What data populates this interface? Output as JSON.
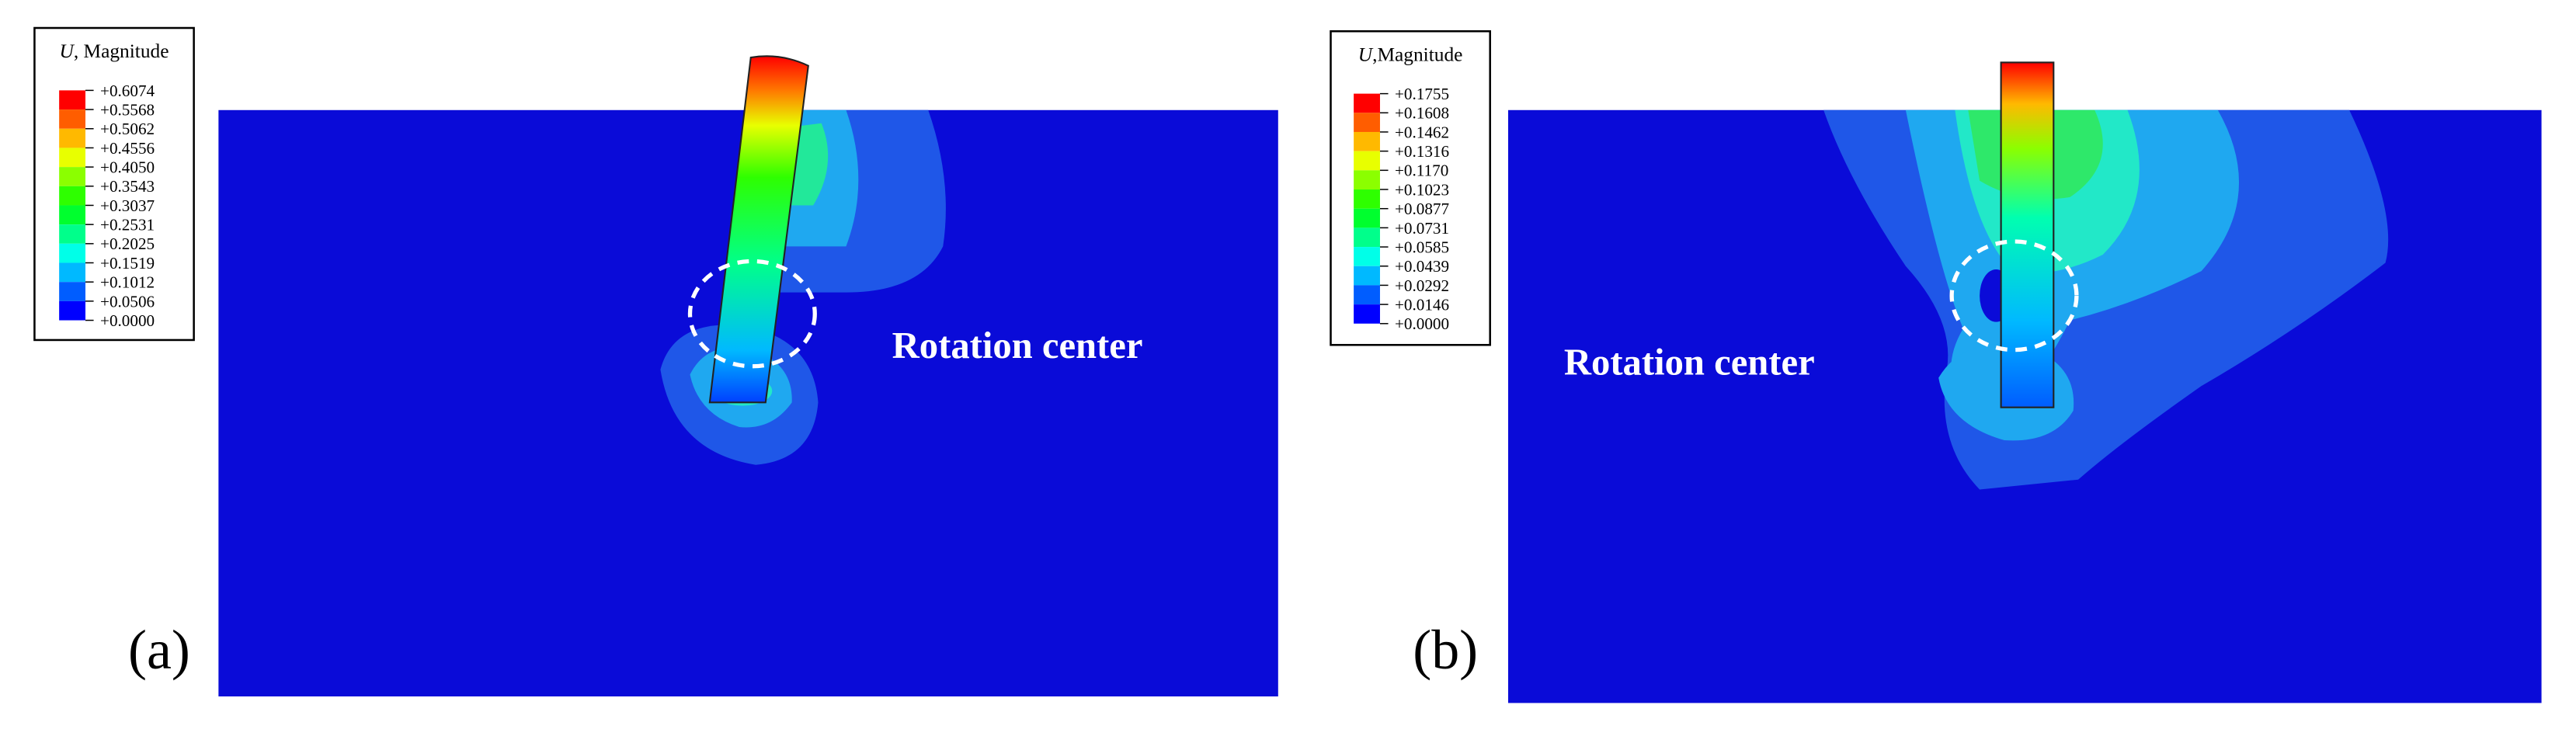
{
  "panels": [
    {
      "label": "(a)",
      "annotation": "Rotation center",
      "legend": {
        "symbol": "U",
        "title": ", Magnitude",
        "levels": [
          "+0.6074",
          "+0.5568",
          "+0.5062",
          "+0.4556",
          "+0.4050",
          "+0.3543",
          "+0.3037",
          "+0.2531",
          "+0.2025",
          "+0.1519",
          "+0.1012",
          "+0.0506",
          "+0.0000"
        ],
        "colors": [
          "#ff0000",
          "#ff5d00",
          "#ffb900",
          "#e8ff00",
          "#8bff00",
          "#2eff00",
          "#00ff2e",
          "#00ff8b",
          "#00ffe8",
          "#00b9ff",
          "#005dff",
          "#0000ff"
        ]
      }
    },
    {
      "label": "(b)",
      "annotation": "Rotation center",
      "legend": {
        "symbol": "U",
        "title": ",Magnitude",
        "levels": [
          "+0.1755",
          "+0.1608",
          "+0.1462",
          "+0.1316",
          "+0.1170",
          "+0.1023",
          "+0.0877",
          "+0.0731",
          "+0.0585",
          "+0.0439",
          "+0.0292",
          "+0.0146",
          "+0.0000"
        ],
        "colors": [
          "#ff0000",
          "#ff5d00",
          "#ffb900",
          "#e8ff00",
          "#8bff00",
          "#2eff00",
          "#00ff2e",
          "#00ff8b",
          "#00ffe8",
          "#00b9ff",
          "#005dff",
          "#0000ff"
        ]
      }
    }
  ]
}
